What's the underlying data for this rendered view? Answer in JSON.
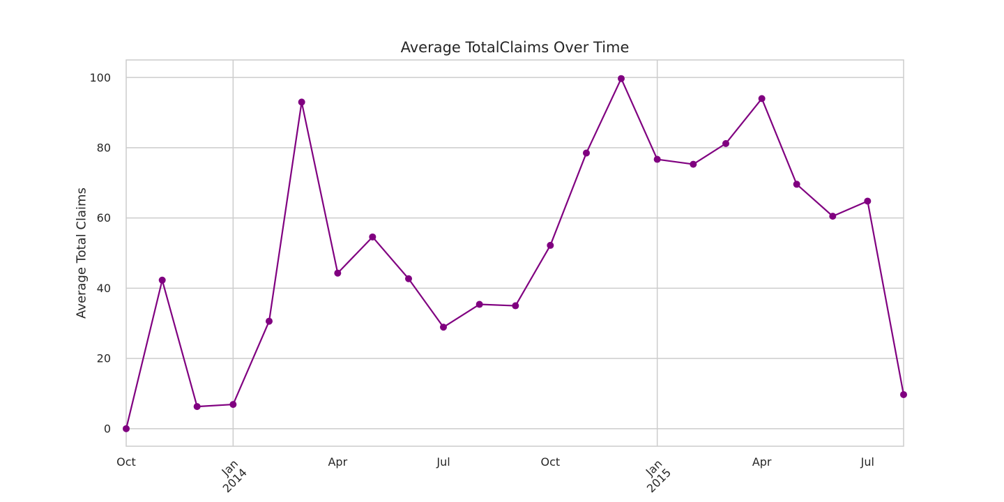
{
  "chart_data": {
    "type": "line",
    "title": "Average TotalClaims Over Time",
    "xlabel": "",
    "ylabel": "Average Total Claims",
    "ylim": [
      -5,
      105
    ],
    "yticks": [
      0,
      20,
      40,
      60,
      80,
      100
    ],
    "xlim": [
      "2013-10-01",
      "2015-08-01"
    ],
    "grid": true,
    "legend": "none",
    "color": "#800080",
    "xticks": [
      {
        "date": "2013-10-01",
        "label": "Oct",
        "year": "",
        "rotated": false
      },
      {
        "date": "2014-01-01",
        "label": "Jan",
        "year": "2014",
        "rotated": true
      },
      {
        "date": "2014-04-01",
        "label": "Apr",
        "year": "",
        "rotated": false
      },
      {
        "date": "2014-07-01",
        "label": "Jul",
        "year": "",
        "rotated": false
      },
      {
        "date": "2014-10-01",
        "label": "Oct",
        "year": "",
        "rotated": false
      },
      {
        "date": "2015-01-01",
        "label": "Jan",
        "year": "2015",
        "rotated": true
      },
      {
        "date": "2015-04-01",
        "label": "Apr",
        "year": "",
        "rotated": false
      },
      {
        "date": "2015-07-01",
        "label": "Jul",
        "year": "",
        "rotated": false
      }
    ],
    "x": [
      "2013-10-01",
      "2013-11-01",
      "2013-12-01",
      "2014-01-01",
      "2014-02-01",
      "2014-03-01",
      "2014-04-01",
      "2014-05-01",
      "2014-06-01",
      "2014-07-01",
      "2014-08-01",
      "2014-09-01",
      "2014-10-01",
      "2014-11-01",
      "2014-12-01",
      "2015-01-01",
      "2015-02-01",
      "2015-03-01",
      "2015-04-01",
      "2015-05-01",
      "2015-06-01",
      "2015-07-01",
      "2015-08-01"
    ],
    "series": [
      {
        "values": [
          0,
          42.3,
          6.3,
          6.9,
          30.6,
          93.0,
          44.3,
          54.6,
          42.7,
          28.9,
          35.4,
          35.0,
          52.2,
          78.5,
          99.7,
          76.7,
          75.3,
          81.2,
          94.0,
          69.6,
          60.5,
          64.8,
          9.7
        ]
      }
    ]
  }
}
